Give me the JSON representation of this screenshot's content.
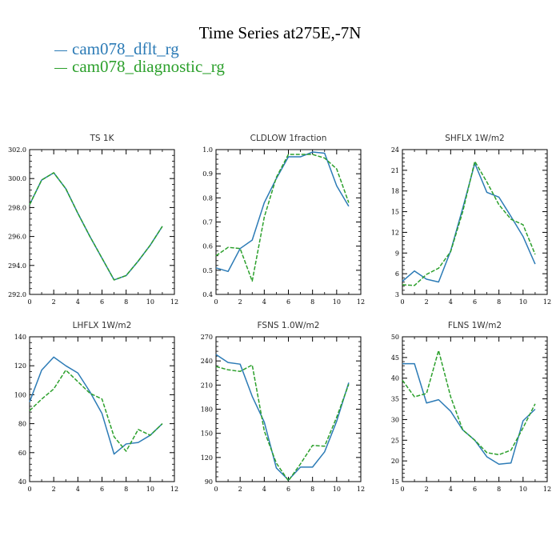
{
  "title": "Time Series at275E,-7N",
  "legend": [
    {
      "label": "cam078_dflt_rg",
      "color": "#2c7bb6"
    },
    {
      "label": "cam078_diagnostic_rg",
      "color": "#2ca02c"
    }
  ],
  "chart_data": [
    {
      "type": "line",
      "title": "TS   1K",
      "xlim": [
        0,
        12
      ],
      "ylim": [
        292,
        302
      ],
      "xticks": [
        0,
        2,
        4,
        6,
        8,
        10,
        12
      ],
      "yticks": [
        292.0,
        294.0,
        296.0,
        298.0,
        300.0,
        302.0
      ],
      "ytick_labels": [
        "292.0",
        "294.0",
        "296.0",
        "298.0",
        "300.0",
        "302.0"
      ],
      "x": [
        0,
        1,
        2,
        3,
        4,
        5,
        6,
        7,
        8,
        9,
        10,
        11
      ],
      "series": [
        {
          "name": "cam078_dflt_rg",
          "values": [
            298.2,
            299.9,
            300.4,
            299.3,
            297.6,
            296.0,
            294.5,
            293.0,
            293.3,
            294.3,
            295.4,
            296.7
          ]
        },
        {
          "name": "cam078_diagnostic_rg",
          "values": [
            298.2,
            299.9,
            300.4,
            299.3,
            297.6,
            296.0,
            294.5,
            293.0,
            293.3,
            294.3,
            295.4,
            296.7
          ]
        }
      ]
    },
    {
      "type": "line",
      "title": "CLDLOW   1fraction",
      "xlim": [
        0,
        12
      ],
      "ylim": [
        0.4,
        1.0
      ],
      "xticks": [
        0,
        2,
        4,
        6,
        8,
        10,
        12
      ],
      "yticks": [
        0.4,
        0.5,
        0.6,
        0.7,
        0.8,
        0.9,
        1.0
      ],
      "ytick_labels": [
        "0.4",
        "0.5",
        "0.6",
        "0.7",
        "0.8",
        "0.9",
        "1.0"
      ],
      "x": [
        0,
        1,
        2,
        3,
        4,
        5,
        6,
        7,
        8,
        9,
        10,
        11
      ],
      "series": [
        {
          "name": "cam078_dflt_rg",
          "values": [
            0.51,
            0.495,
            0.59,
            0.625,
            0.78,
            0.88,
            0.97,
            0.97,
            0.99,
            0.985,
            0.85,
            0.765
          ]
        },
        {
          "name": "cam078_diagnostic_rg",
          "values": [
            0.56,
            0.595,
            0.59,
            0.455,
            0.72,
            0.885,
            0.98,
            0.98,
            0.98,
            0.965,
            0.92,
            0.78
          ]
        }
      ]
    },
    {
      "type": "line",
      "title": "SHFLX   1W/m2",
      "xlim": [
        0,
        12
      ],
      "ylim": [
        3,
        24
      ],
      "xticks": [
        0,
        2,
        4,
        6,
        8,
        10,
        12
      ],
      "yticks": [
        3,
        6,
        9,
        12,
        15,
        18,
        21,
        24
      ],
      "ytick_labels": [
        "3",
        "6",
        "9",
        "12",
        "15",
        "18",
        "21",
        "24"
      ],
      "x": [
        0,
        1,
        2,
        3,
        4,
        5,
        6,
        7,
        8,
        9,
        10,
        11
      ],
      "series": [
        {
          "name": "cam078_dflt_rg",
          "values": [
            4.9,
            6.4,
            5.2,
            4.8,
            9.3,
            15.5,
            22.0,
            17.8,
            17.1,
            14.3,
            11.4,
            7.4
          ]
        },
        {
          "name": "cam078_diagnostic_rg",
          "values": [
            4.4,
            4.3,
            5.9,
            6.8,
            9.2,
            15.0,
            22.3,
            19.3,
            16.0,
            13.9,
            13.1,
            8.8
          ]
        }
      ]
    },
    {
      "type": "line",
      "title": "LHFLX   1W/m2",
      "xlim": [
        0,
        12
      ],
      "ylim": [
        40,
        140
      ],
      "xticks": [
        0,
        2,
        4,
        6,
        8,
        10,
        12
      ],
      "yticks": [
        40,
        60,
        80,
        100,
        120,
        140
      ],
      "ytick_labels": [
        "40",
        "60",
        "80",
        "100",
        "120",
        "140"
      ],
      "x": [
        0,
        1,
        2,
        3,
        4,
        5,
        6,
        7,
        8,
        9,
        10,
        11
      ],
      "series": [
        {
          "name": "cam078_dflt_rg",
          "values": [
            95,
            117,
            126,
            120,
            115,
            102,
            87,
            59,
            66,
            67,
            72,
            80
          ]
        },
        {
          "name": "cam078_diagnostic_rg",
          "values": [
            89,
            97,
            104,
            117,
            109,
            101,
            97,
            71,
            61,
            76,
            72,
            80
          ]
        }
      ]
    },
    {
      "type": "line",
      "title": "FSNS   1.0W/m2",
      "xlim": [
        0,
        12
      ],
      "ylim": [
        90,
        270
      ],
      "xticks": [
        0,
        2,
        4,
        6,
        8,
        10,
        12
      ],
      "yticks": [
        90,
        120,
        150,
        180,
        210,
        240,
        270
      ],
      "ytick_labels": [
        "90",
        "120",
        "150",
        "180",
        "210",
        "240",
        "270"
      ],
      "x": [
        0,
        1,
        2,
        3,
        4,
        5,
        6,
        7,
        8,
        9,
        10,
        11
      ],
      "series": [
        {
          "name": "cam078_dflt_rg",
          "values": [
            248,
            238,
            236,
            196,
            164,
            107,
            92,
            108,
            108,
            127,
            165,
            213
          ]
        },
        {
          "name": "cam078_diagnostic_rg",
          "values": [
            233,
            229,
            227,
            235,
            153,
            113,
            91,
            112,
            135,
            134,
            170,
            211
          ]
        }
      ]
    },
    {
      "type": "line",
      "title": "FLNS   1W/m2",
      "xlim": [
        0,
        12
      ],
      "ylim": [
        15,
        50
      ],
      "xticks": [
        0,
        2,
        4,
        6,
        8,
        10,
        12
      ],
      "yticks": [
        15,
        20,
        25,
        30,
        35,
        40,
        45,
        50
      ],
      "ytick_labels": [
        "15",
        "20",
        "25",
        "30",
        "35",
        "40",
        "45",
        "50"
      ],
      "x": [
        0,
        1,
        2,
        3,
        4,
        5,
        6,
        7,
        8,
        9,
        10,
        11
      ],
      "series": [
        {
          "name": "cam078_dflt_rg",
          "values": [
            43.5,
            43.5,
            34.0,
            34.8,
            32.0,
            27.5,
            25.0,
            21.0,
            19.2,
            19.5,
            29.7,
            32.5
          ]
        },
        {
          "name": "cam078_diagnostic_rg",
          "values": [
            39.5,
            35.5,
            36.3,
            46.7,
            35.5,
            27.5,
            25.0,
            22.0,
            21.5,
            22.6,
            28.0,
            33.8
          ]
        }
      ]
    }
  ]
}
